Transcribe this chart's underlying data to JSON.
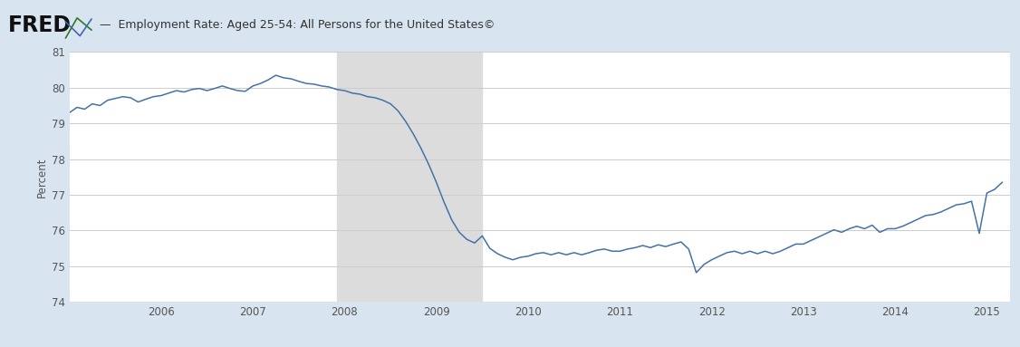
{
  "title": "Employment Rate: Aged 25-54: All Persons for the United States©",
  "ylabel": "Percent",
  "fig_bg_color": "#d8e4f0",
  "plot_bg_color": "#ffffff",
  "header_bg_color": "#d8e4f0",
  "line_color": "#4472a8",
  "recession_color": "#dcdcdc",
  "recession_start": 2007.917,
  "recession_end": 2009.5,
  "ylim": [
    74,
    81
  ],
  "yticks": [
    74,
    75,
    76,
    77,
    78,
    79,
    80,
    81
  ],
  "xlim_start": 2005.0,
  "xlim_end": 2015.25,
  "xtick_years": [
    2006,
    2007,
    2008,
    2009,
    2010,
    2011,
    2012,
    2013,
    2014,
    2015
  ],
  "data": {
    "dates": [
      2005.0,
      2005.083,
      2005.167,
      2005.25,
      2005.333,
      2005.417,
      2005.5,
      2005.583,
      2005.667,
      2005.75,
      2005.833,
      2005.917,
      2006.0,
      2006.083,
      2006.167,
      2006.25,
      2006.333,
      2006.417,
      2006.5,
      2006.583,
      2006.667,
      2006.75,
      2006.833,
      2006.917,
      2007.0,
      2007.083,
      2007.167,
      2007.25,
      2007.333,
      2007.417,
      2007.5,
      2007.583,
      2007.667,
      2007.75,
      2007.833,
      2007.917,
      2008.0,
      2008.083,
      2008.167,
      2008.25,
      2008.333,
      2008.417,
      2008.5,
      2008.583,
      2008.667,
      2008.75,
      2008.833,
      2008.917,
      2009.0,
      2009.083,
      2009.167,
      2009.25,
      2009.333,
      2009.417,
      2009.5,
      2009.583,
      2009.667,
      2009.75,
      2009.833,
      2009.917,
      2010.0,
      2010.083,
      2010.167,
      2010.25,
      2010.333,
      2010.417,
      2010.5,
      2010.583,
      2010.667,
      2010.75,
      2010.833,
      2010.917,
      2011.0,
      2011.083,
      2011.167,
      2011.25,
      2011.333,
      2011.417,
      2011.5,
      2011.583,
      2011.667,
      2011.75,
      2011.833,
      2011.917,
      2012.0,
      2012.083,
      2012.167,
      2012.25,
      2012.333,
      2012.417,
      2012.5,
      2012.583,
      2012.667,
      2012.75,
      2012.833,
      2012.917,
      2013.0,
      2013.083,
      2013.167,
      2013.25,
      2013.333,
      2013.417,
      2013.5,
      2013.583,
      2013.667,
      2013.75,
      2013.833,
      2013.917,
      2014.0,
      2014.083,
      2014.167,
      2014.25,
      2014.333,
      2014.417,
      2014.5,
      2014.583,
      2014.667,
      2014.75,
      2014.833,
      2014.917,
      2015.0,
      2015.083,
      2015.167
    ],
    "values": [
      79.3,
      79.45,
      79.4,
      79.55,
      79.5,
      79.65,
      79.7,
      79.75,
      79.72,
      79.6,
      79.68,
      79.75,
      79.78,
      79.85,
      79.92,
      79.88,
      79.95,
      79.98,
      79.92,
      79.98,
      80.05,
      79.98,
      79.92,
      79.9,
      80.05,
      80.12,
      80.22,
      80.35,
      80.28,
      80.25,
      80.18,
      80.12,
      80.1,
      80.05,
      80.02,
      79.95,
      79.92,
      79.85,
      79.82,
      79.75,
      79.72,
      79.65,
      79.55,
      79.35,
      79.05,
      78.7,
      78.3,
      77.85,
      77.35,
      76.8,
      76.3,
      75.95,
      75.75,
      75.65,
      75.85,
      75.5,
      75.35,
      75.25,
      75.18,
      75.25,
      75.28,
      75.35,
      75.38,
      75.32,
      75.38,
      75.32,
      75.38,
      75.32,
      75.38,
      75.45,
      75.48,
      75.42,
      75.42,
      75.48,
      75.52,
      75.58,
      75.52,
      75.6,
      75.55,
      75.62,
      75.68,
      75.48,
      74.82,
      75.05,
      75.18,
      75.28,
      75.38,
      75.42,
      75.35,
      75.42,
      75.35,
      75.42,
      75.35,
      75.42,
      75.52,
      75.62,
      75.62,
      75.72,
      75.82,
      75.92,
      76.02,
      75.95,
      76.05,
      76.12,
      76.05,
      76.15,
      75.95,
      76.05,
      76.05,
      76.12,
      76.22,
      76.32,
      76.42,
      76.45,
      76.52,
      76.62,
      76.72,
      76.75,
      76.82,
      75.92,
      77.05,
      77.15,
      77.35
    ]
  }
}
